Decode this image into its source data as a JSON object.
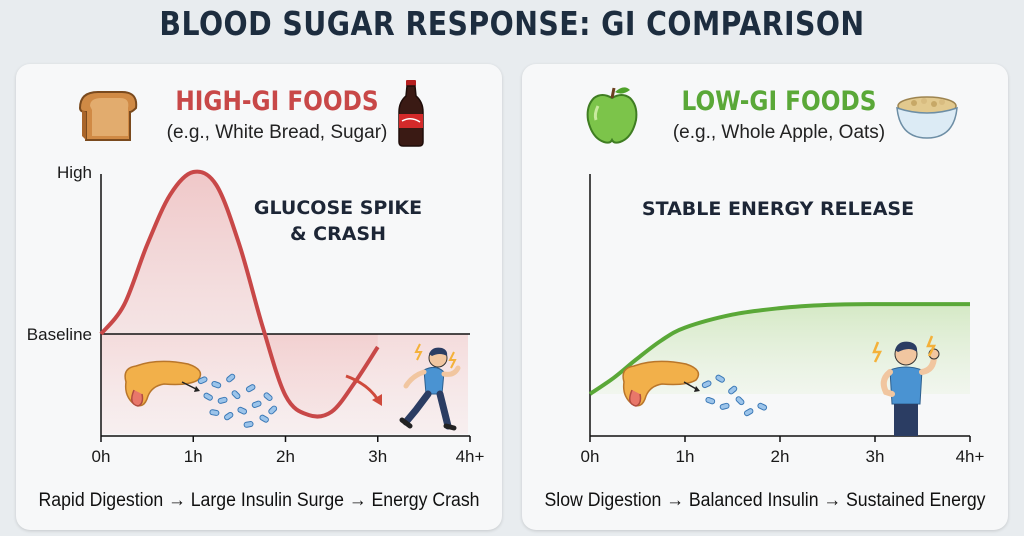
{
  "title": "BLOOD SUGAR RESPONSE: GI COMPARISON",
  "panels": [
    {
      "heading": "HIGH-GI FOODS",
      "examples": "(e.g., White Bread, Sugar)",
      "caption": "Rapid Digestion → Large Insulin Surge → Energy Crash",
      "annotation": [
        "GLUCOSE SPIKE",
        "& CRASH"
      ],
      "icons": [
        "bread-icon",
        "soda-bottle-icon",
        "pancreas-icon",
        "insulin-particles-icon",
        "tired-person-icon"
      ]
    },
    {
      "heading": "LOW-GI FOODS",
      "examples": "(e.g.,  Whole Apple, Oats)",
      "caption": "Slow Digestion → Balanced Insulin → Sustained Energy",
      "annotation": [
        "STABLE ENERGY RELEASE"
      ],
      "icons": [
        "apple-icon",
        "oats-bowl-icon",
        "pancreas-icon",
        "insulin-particles-icon",
        "energetic-person-icon"
      ]
    }
  ],
  "colors": {
    "high": "#c84848",
    "low": "#5aa838",
    "title": "#1d2d3f",
    "background": "#e8ecef"
  },
  "chart_data": [
    {
      "type": "line",
      "x": [
        0,
        0.25,
        0.5,
        0.75,
        1,
        1.25,
        1.5,
        1.75,
        2,
        2.25,
        2.5,
        2.75,
        3
      ],
      "series": [
        {
          "values": [
            0,
            0.18,
            0.55,
            0.86,
            1.0,
            0.92,
            0.55,
            0.05,
            -0.38,
            -0.5,
            -0.48,
            -0.3,
            -0.08
          ]
        }
      ],
      "x_tick_labels": [
        "0h",
        "1h",
        "2h",
        "3h",
        "4h+"
      ],
      "y_tick_labels": [
        "High",
        "Baseline"
      ],
      "y_ticks": [
        1.0,
        0
      ],
      "xlim": [
        0,
        4
      ],
      "ylim": [
        -0.7,
        1.1
      ]
    },
    {
      "type": "area",
      "x": [
        0,
        0.25,
        0.5,
        0.75,
        1,
        1.5,
        2,
        2.5,
        3,
        3.5,
        4
      ],
      "series": [
        {
          "values": [
            0,
            0.1,
            0.22,
            0.33,
            0.41,
            0.49,
            0.53,
            0.55,
            0.555,
            0.555,
            0.555
          ]
        }
      ],
      "x_tick_labels": [
        "0h",
        "1h",
        "2h",
        "3h",
        "4h+"
      ],
      "xlim": [
        0,
        4
      ],
      "ylim": [
        -0.7,
        1.1
      ]
    }
  ]
}
